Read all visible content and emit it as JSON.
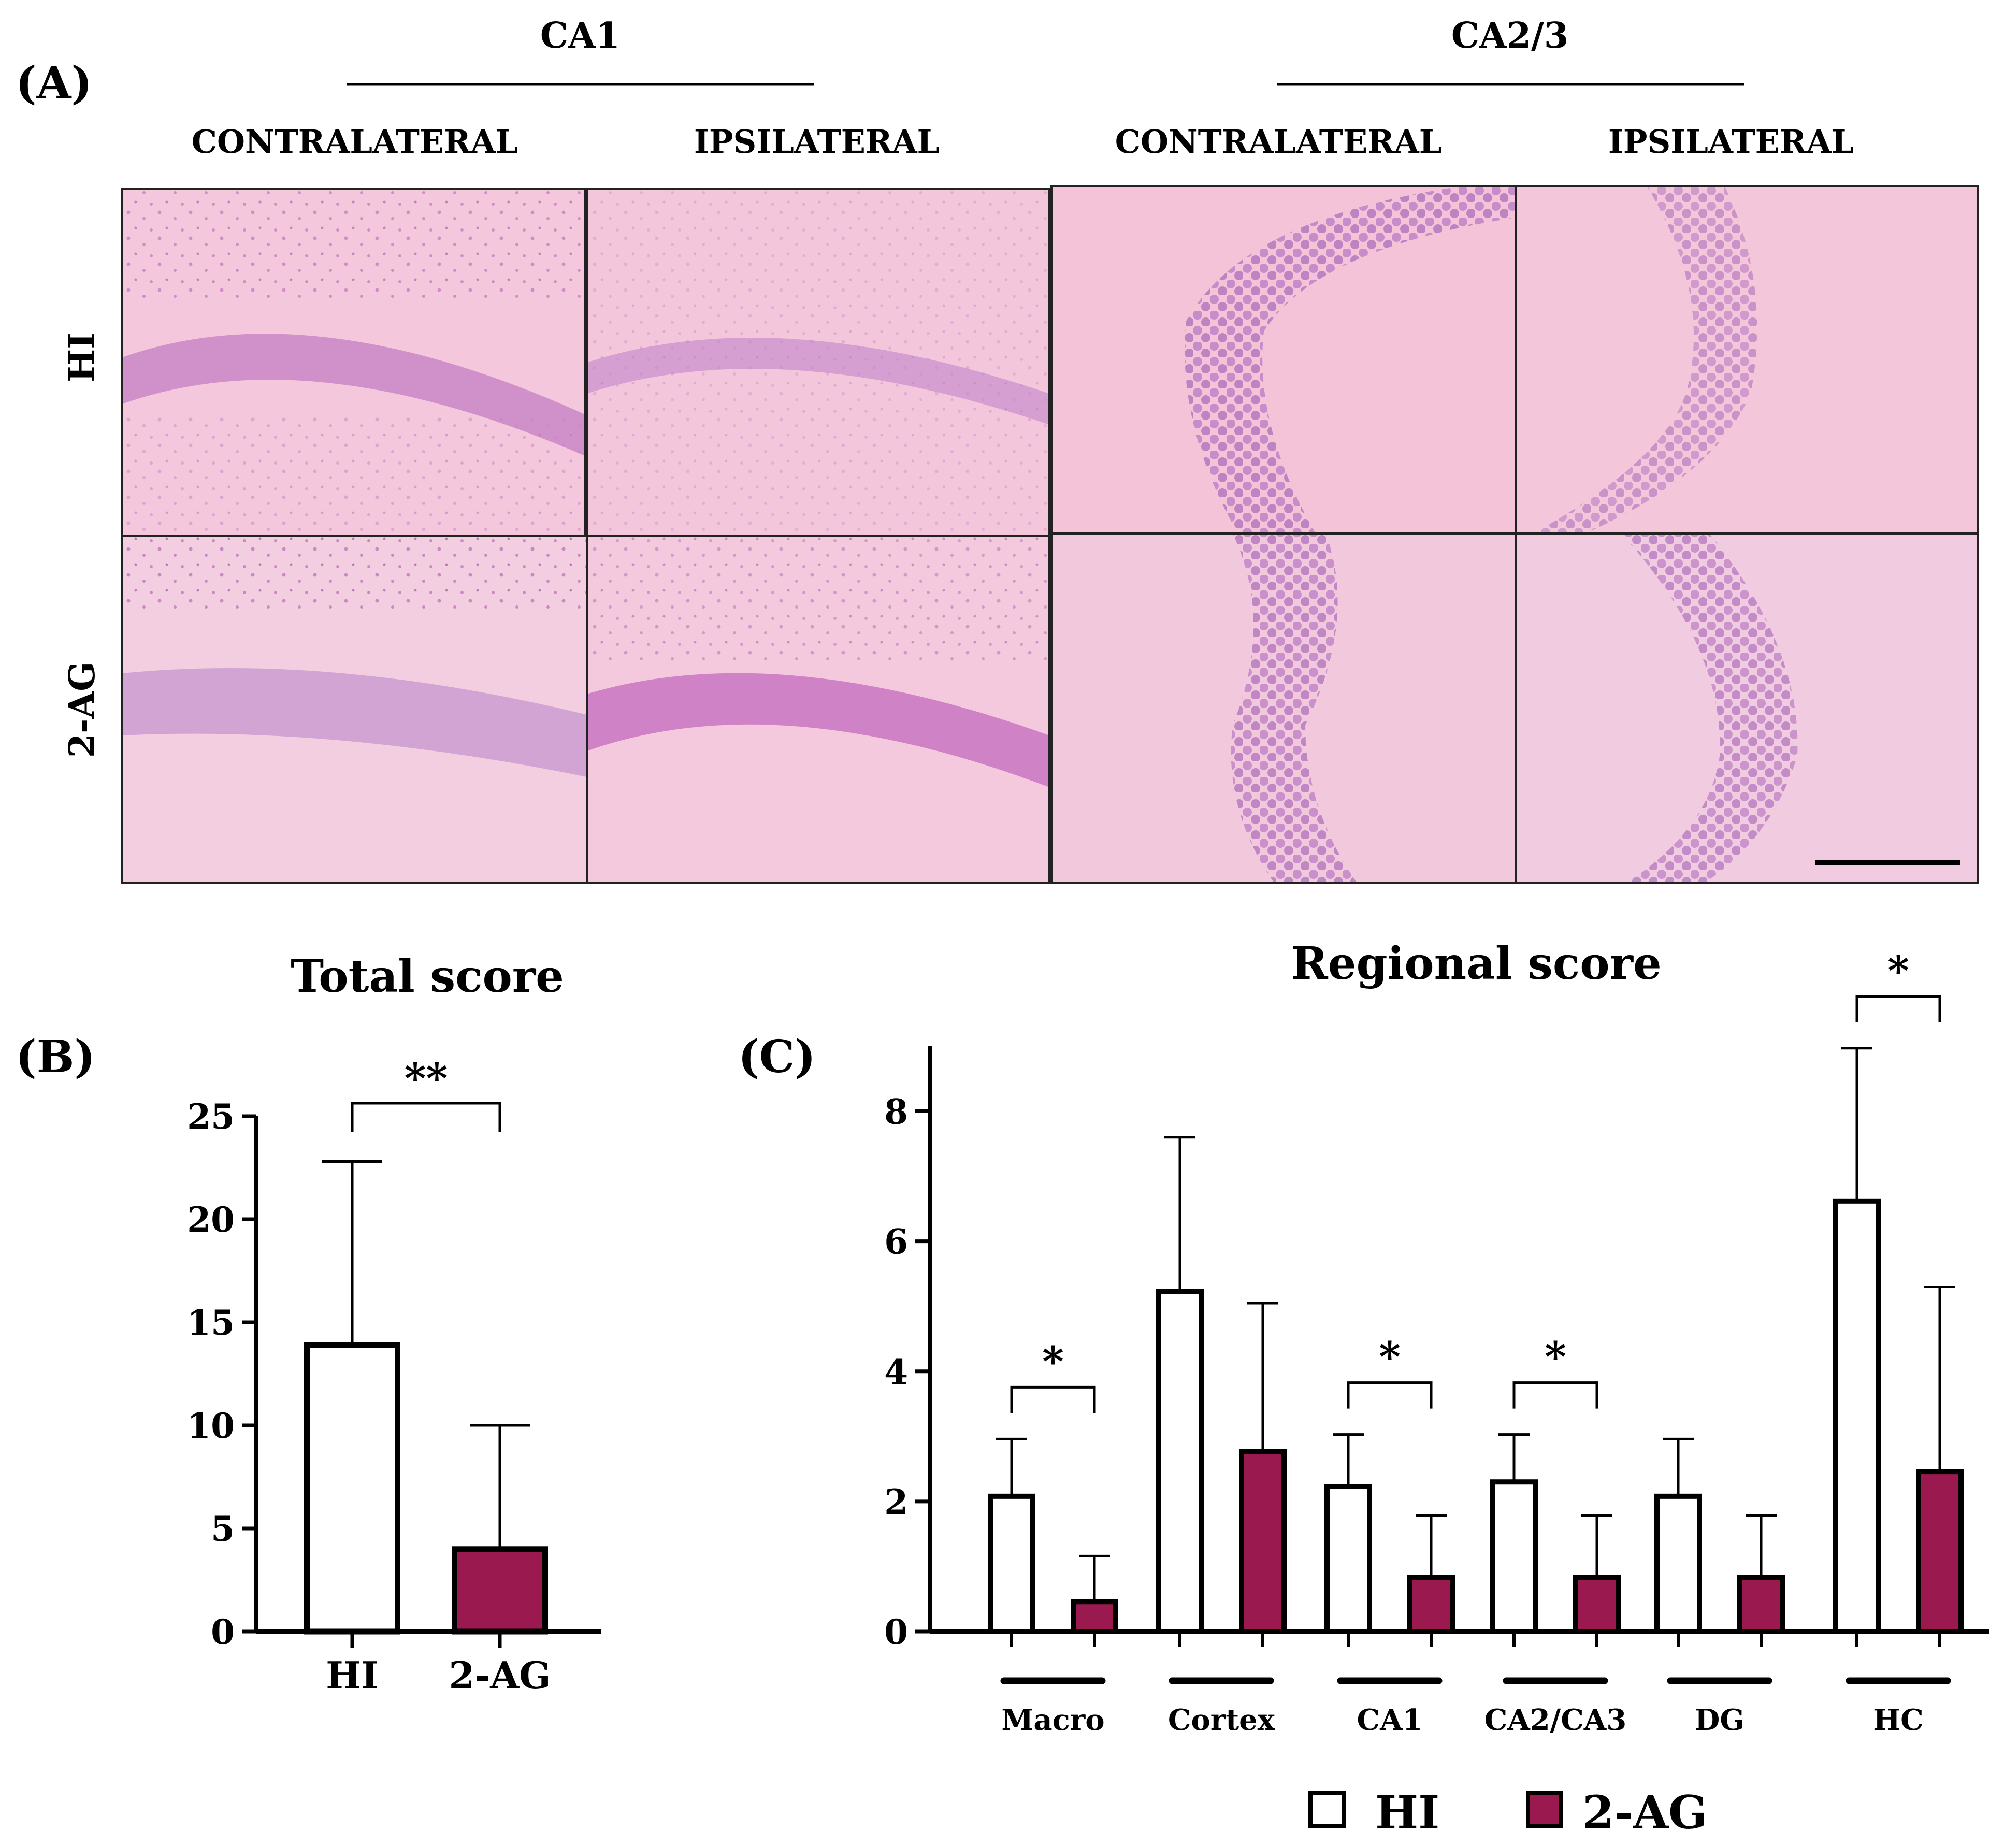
{
  "panel_a": {
    "label": "(A)",
    "groups": [
      "CA1",
      "CA2/3"
    ],
    "columns": [
      "CONTRALATERAL",
      "IPSILATERAL",
      "CONTRALATERAL",
      "IPSILATERAL"
    ],
    "rows": [
      "HI",
      "2-AG"
    ],
    "stain_colors": {
      "background": "#f3bfd6",
      "cells": "#c683c9",
      "white_matter": "#f2e4ee"
    }
  },
  "chart_data": [
    {
      "panel_label": "(B)",
      "type": "bar",
      "title": "Total score",
      "categories": [
        "HI",
        "2-AG"
      ],
      "values": [
        13.9,
        4.0
      ],
      "errors": [
        8.9,
        6.0
      ],
      "ylim": [
        0,
        25
      ],
      "yticks": [
        0,
        5,
        10,
        15,
        20,
        25
      ],
      "significance": [
        {
          "label": "**",
          "between": [
            "HI",
            "2-AG"
          ]
        }
      ],
      "bar_colors": [
        "#ffffff",
        "#9a1a4f"
      ]
    },
    {
      "panel_label": "(C)",
      "type": "bar",
      "title": "Regional score",
      "categories": [
        "Macro",
        "Cortex",
        "CA1",
        "CA2/CA3",
        "DG",
        "HC"
      ],
      "series": [
        {
          "name": "HI",
          "values": [
            2.08,
            5.23,
            2.23,
            2.3,
            2.08,
            6.62
          ],
          "errors": [
            0.88,
            2.37,
            0.8,
            0.73,
            0.88,
            2.35
          ],
          "color": "#ffffff"
        },
        {
          "name": "2-AG",
          "values": [
            0.46,
            2.77,
            0.83,
            0.83,
            0.83,
            2.46
          ],
          "errors": [
            0.7,
            2.28,
            0.95,
            0.95,
            0.95,
            2.84
          ],
          "color": "#9a1a4f"
        }
      ],
      "ylim": [
        0,
        9
      ],
      "yticks": [
        0,
        2,
        4,
        6,
        8
      ],
      "significance": [
        {
          "label": "*",
          "category": "Macro"
        },
        {
          "label": "*",
          "category": "CA1"
        },
        {
          "label": "*",
          "category": "CA2/CA3"
        },
        {
          "label": "*",
          "category": "HC"
        }
      ],
      "legend_position": "bottom"
    }
  ]
}
